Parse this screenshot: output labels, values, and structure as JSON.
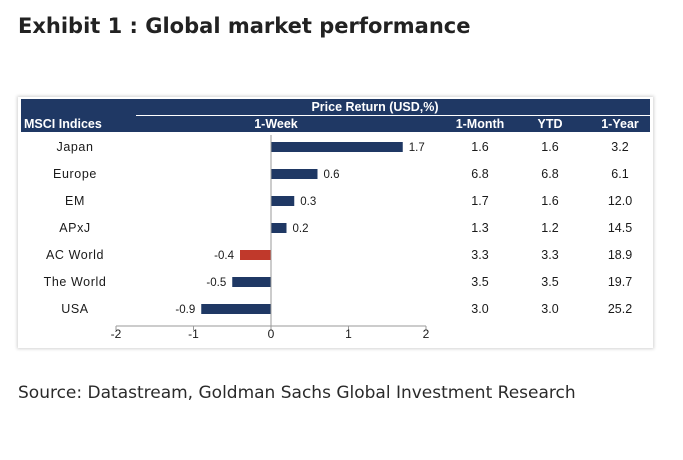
{
  "title": "Exhibit 1 : Global market performance",
  "source": "Source: Datastream, Goldman Sachs Global Investment Research",
  "colors": {
    "header": "#1f3864",
    "positive": "#1f3864",
    "negative": "#c0392b"
  },
  "chart_data": {
    "type": "bar",
    "orientation": "horizontal",
    "header_group": "Price Return (USD,%)",
    "row_header": "MSCI Indices",
    "bar_header": "1-Week",
    "columns": [
      "1-Month",
      "YTD",
      "1-Year"
    ],
    "categories": [
      "Japan",
      "Europe",
      "EM",
      "APxJ",
      "AC World",
      "The World",
      "USA"
    ],
    "series": [
      {
        "name": "1-Week",
        "values": [
          1.7,
          0.6,
          0.3,
          0.2,
          -0.4,
          -0.5,
          -0.9
        ]
      }
    ],
    "value_labels": [
      "1.7",
      "0.6",
      "0.3",
      "0.2",
      "-0.4",
      "-0.5",
      "-0.9"
    ],
    "table": [
      [
        "1.6",
        "1.6",
        "3.2"
      ],
      [
        "6.8",
        "6.8",
        "6.1"
      ],
      [
        "1.7",
        "1.6",
        "12.0"
      ],
      [
        "1.3",
        "1.2",
        "14.5"
      ],
      [
        "3.3",
        "3.3",
        "18.9"
      ],
      [
        "3.5",
        "3.5",
        "19.7"
      ],
      [
        "3.0",
        "3.0",
        "25.2"
      ]
    ],
    "xlim": [
      -2,
      2
    ],
    "xticks": [
      "-2",
      "-1",
      "0",
      "1",
      "2"
    ],
    "highlight": "AC World",
    "grid": false,
    "legend": "none"
  }
}
